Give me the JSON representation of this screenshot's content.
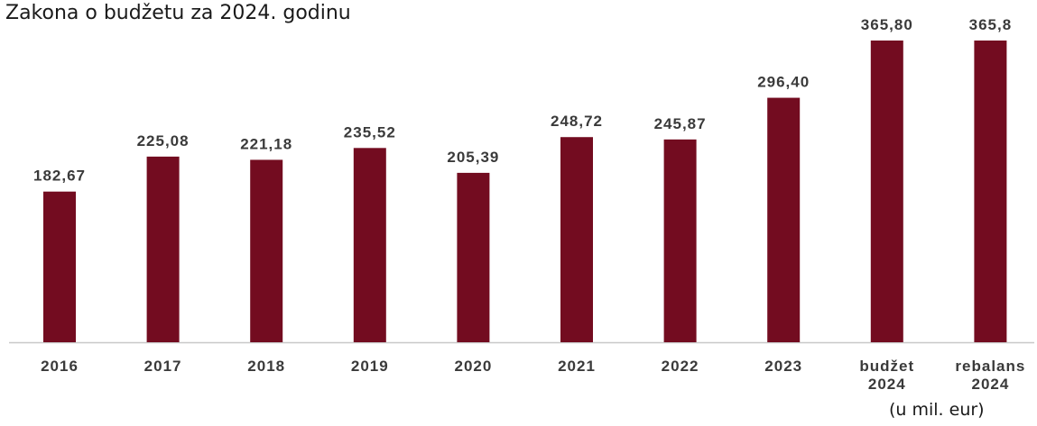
{
  "chart_data": {
    "type": "bar",
    "title": "Zakona o budžetu za 2024. godinu",
    "unit_note": "(u mil. eur)",
    "categories": [
      [
        "2016"
      ],
      [
        "2017"
      ],
      [
        "2018"
      ],
      [
        "2019"
      ],
      [
        "2020"
      ],
      [
        "2021"
      ],
      [
        "2022"
      ],
      [
        "2023"
      ],
      [
        "budžet",
        "2024"
      ],
      [
        "rebalans",
        "2024"
      ]
    ],
    "values": [
      182.67,
      225.08,
      221.18,
      235.52,
      205.39,
      248.72,
      245.87,
      296.4,
      365.8,
      365.8
    ],
    "value_labels": [
      "182,67",
      "225,08",
      "221,18",
      "235,52",
      "205,39",
      "248,72",
      "245,87",
      "296,40",
      "365,80",
      "365,8"
    ],
    "xlabel": "",
    "ylabel": "",
    "ylim": [
      0,
      365.8
    ],
    "grid": false,
    "legend": "none",
    "bar_color": "#730c20",
    "axis_color": "#c8c8c8"
  }
}
